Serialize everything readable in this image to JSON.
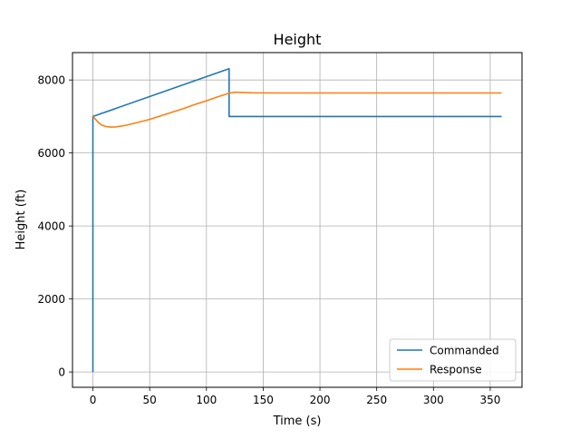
{
  "chart_data": {
    "type": "line",
    "title": "Height",
    "xlabel": "Time (s)",
    "ylabel": "Height (ft)",
    "xlim": [
      -18,
      378
    ],
    "ylim": [
      -420,
      8750
    ],
    "xticks": [
      0,
      50,
      100,
      150,
      200,
      250,
      300,
      350
    ],
    "yticks": [
      0,
      2000,
      4000,
      6000,
      8000
    ],
    "grid": true,
    "legend_position": "lower-right",
    "series": [
      {
        "name": "Commanded",
        "color": "#1f77b4",
        "x": [
          0,
          0,
          0.01,
          120,
          120,
          360
        ],
        "y": [
          0,
          7000,
          7000,
          8310,
          7000,
          7000
        ]
      },
      {
        "name": "Response",
        "color": "#ff7f0e",
        "x": [
          0,
          2,
          5,
          8,
          12,
          16,
          20,
          25,
          30,
          40,
          50,
          60,
          70,
          80,
          90,
          100,
          110,
          120,
          125,
          130,
          140,
          160,
          200,
          250,
          300,
          360
        ],
        "y": [
          7000,
          6930,
          6830,
          6760,
          6720,
          6710,
          6715,
          6735,
          6765,
          6840,
          6920,
          7020,
          7120,
          7220,
          7330,
          7430,
          7540,
          7640,
          7665,
          7660,
          7650,
          7645,
          7645,
          7645,
          7645,
          7645
        ]
      }
    ]
  }
}
